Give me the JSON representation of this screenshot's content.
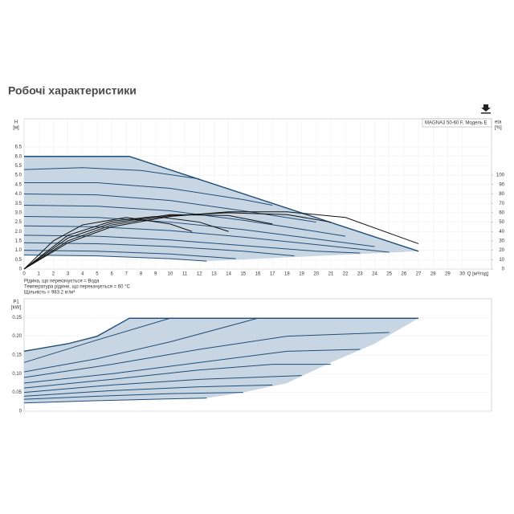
{
  "title": "Робочі характеристики",
  "chart_data": [
    {
      "type": "line",
      "ylabel": "H",
      "yunit": "[м]",
      "y2label": "eta",
      "y2unit": "[%]",
      "xlabel": "Q [м³/год]",
      "annotation": "MAGNA3 50-60 F, Модель E",
      "notes": [
        "Рідина, що перекачується = Вода",
        "Температура рідини, що перекачується = 60 °C",
        "Щільність = 983.2 кг/м³"
      ],
      "xlim": [
        0,
        32
      ],
      "xticks": [
        0,
        1,
        2,
        3,
        4,
        5,
        6,
        7,
        8,
        9,
        10,
        11,
        12,
        13,
        14,
        15,
        16,
        17,
        18,
        19,
        20,
        21,
        22,
        23,
        24,
        25,
        26,
        27,
        28,
        29,
        30
      ],
      "ylim": [
        0,
        8
      ],
      "yticks": [
        0,
        0.5,
        {
          "value": 1,
          "label": "1.0"
        },
        1.5,
        {
          "value": 2,
          "label": "2.0"
        },
        2.5,
        {
          "value": 3,
          "label": "3.0"
        },
        3.5,
        {
          "value": 4,
          "label": "4.0"
        },
        4.5,
        {
          "value": 5,
          "label": "5.0"
        },
        5.5,
        {
          "value": 6,
          "label": "6.0"
        },
        6.5
      ],
      "y2lim": [
        0,
        160
      ],
      "y2ticks": [
        0,
        10,
        20,
        30,
        40,
        50,
        60,
        70,
        80,
        90,
        100
      ],
      "grid": true,
      "region": {
        "color": "#c8d6e3",
        "x": [
          0,
          7.2,
          27,
          12.5,
          10,
          5,
          0
        ],
        "values": [
          6.0,
          6.0,
          0.95,
          0.42,
          0.55,
          0.7,
          0.75
        ]
      },
      "series": [
        {
          "color": "#1f4e79",
          "x": [
            0,
            7.2,
            27
          ],
          "values": [
            6.0,
            6.0,
            0.95
          ]
        },
        {
          "color": "#1f4e79",
          "x": [
            0,
            4,
            8,
            12
          ],
          "values": [
            5.3,
            5.4,
            5.25,
            4.8
          ]
        },
        {
          "color": "#1f4e79",
          "x": [
            0,
            5,
            10,
            15,
            17
          ],
          "values": [
            4.6,
            4.6,
            4.3,
            3.7,
            3.4
          ]
        },
        {
          "color": "#1f4e79",
          "x": [
            0,
            5,
            10,
            15,
            20
          ],
          "values": [
            4.0,
            3.95,
            3.65,
            3.1,
            2.5
          ]
        },
        {
          "color": "#1f4e79",
          "x": [
            0,
            5,
            10,
            15,
            20,
            22
          ],
          "values": [
            3.4,
            3.35,
            3.1,
            2.6,
            2.0,
            1.75
          ]
        },
        {
          "color": "#1f4e79",
          "x": [
            0,
            5,
            10,
            15,
            20,
            24
          ],
          "values": [
            2.8,
            2.75,
            2.5,
            2.1,
            1.6,
            1.2
          ]
        },
        {
          "color": "#1f4e79",
          "x": [
            0,
            5,
            10,
            15,
            20,
            25
          ],
          "values": [
            2.3,
            2.25,
            2.05,
            1.7,
            1.3,
            0.9
          ]
        },
        {
          "color": "#1f4e79",
          "x": [
            0,
            5,
            10,
            15,
            20,
            23
          ],
          "values": [
            1.8,
            1.75,
            1.55,
            1.25,
            0.95,
            0.85
          ]
        },
        {
          "color": "#1f4e79",
          "x": [
            0,
            5,
            10,
            15,
            18.5
          ],
          "values": [
            1.4,
            1.35,
            1.2,
            0.95,
            0.7
          ]
        },
        {
          "color": "#1f4e79",
          "x": [
            0,
            5,
            10,
            14.5
          ],
          "values": [
            1.0,
            0.95,
            0.8,
            0.55
          ]
        },
        {
          "color": "#1f4e79",
          "x": [
            0,
            5,
            10,
            12.5
          ],
          "values": [
            0.75,
            0.7,
            0.55,
            0.42
          ]
        },
        {
          "color": "#111111",
          "axis": "y2",
          "x": [
            0,
            3,
            6,
            10,
            14,
            18,
            22,
            27
          ],
          "values": [
            0,
            28,
            45,
            56,
            61,
            61,
            55,
            27
          ]
        },
        {
          "color": "#111111",
          "axis": "y2",
          "x": [
            0,
            3,
            6,
            10,
            14,
            18,
            21
          ],
          "values": [
            0,
            30,
            47,
            57,
            60,
            58,
            50
          ]
        },
        {
          "color": "#111111",
          "axis": "y2",
          "x": [
            0,
            3,
            6,
            10,
            14,
            17
          ],
          "values": [
            0,
            33,
            49,
            58,
            57,
            48
          ]
        },
        {
          "color": "#111111",
          "axis": "y2",
          "x": [
            0,
            3,
            6,
            9,
            12,
            14
          ],
          "values": [
            0,
            36,
            51,
            56,
            50,
            40
          ]
        },
        {
          "color": "#111111",
          "axis": "y2",
          "x": [
            0,
            2,
            4,
            7,
            10,
            11.5
          ],
          "values": [
            0,
            30,
            47,
            55,
            48,
            40
          ]
        }
      ]
    },
    {
      "type": "line",
      "ylabel": "P1",
      "yunit": "[kW]",
      "xlim": [
        0,
        32
      ],
      "ylim": [
        0,
        0.3
      ],
      "yticks": [
        0,
        0.05,
        {
          "value": 0.1,
          "label": "0.10"
        },
        0.15,
        {
          "value": 0.2,
          "label": "0.20"
        },
        0.25
      ],
      "grid": true,
      "region": {
        "color": "#c8d6e3",
        "x": [
          0,
          3,
          5,
          7.2,
          27,
          24,
          21,
          18,
          15,
          12.5,
          10,
          5,
          0
        ],
        "values": [
          0.16,
          0.18,
          0.2,
          0.248,
          0.248,
          0.18,
          0.13,
          0.075,
          0.05,
          0.035,
          0.033,
          0.028,
          0.022
        ]
      },
      "series": [
        {
          "color": "#1f4e79",
          "x": [
            0,
            3,
            5,
            7.2,
            27
          ],
          "values": [
            0.16,
            0.18,
            0.2,
            0.248,
            0.248
          ]
        },
        {
          "color": "#1f4e79",
          "x": [
            0,
            5,
            10
          ],
          "values": [
            0.13,
            0.19,
            0.248
          ]
        },
        {
          "color": "#1f4e79",
          "x": [
            0,
            5,
            10,
            16
          ],
          "values": [
            0.105,
            0.14,
            0.185,
            0.248
          ]
        },
        {
          "color": "#1f4e79",
          "x": [
            0,
            6,
            12,
            18,
            25
          ],
          "values": [
            0.09,
            0.125,
            0.165,
            0.2,
            0.21
          ]
        },
        {
          "color": "#1f4e79",
          "x": [
            0,
            6,
            12,
            18,
            23
          ],
          "values": [
            0.075,
            0.1,
            0.13,
            0.16,
            0.165
          ]
        },
        {
          "color": "#1f4e79",
          "x": [
            0,
            6,
            12,
            17,
            21
          ],
          "values": [
            0.062,
            0.085,
            0.11,
            0.125,
            0.125
          ]
        },
        {
          "color": "#1f4e79",
          "x": [
            0,
            6,
            12,
            19
          ],
          "values": [
            0.05,
            0.07,
            0.085,
            0.095
          ]
        },
        {
          "color": "#1f4e79",
          "x": [
            0,
            6,
            12,
            17
          ],
          "values": [
            0.04,
            0.055,
            0.065,
            0.07
          ]
        },
        {
          "color": "#1f4e79",
          "x": [
            0,
            5,
            10,
            15
          ],
          "values": [
            0.032,
            0.04,
            0.047,
            0.05
          ]
        },
        {
          "color": "#1f4e79",
          "x": [
            0,
            5,
            10,
            12.5
          ],
          "values": [
            0.022,
            0.028,
            0.033,
            0.035
          ]
        }
      ]
    }
  ]
}
